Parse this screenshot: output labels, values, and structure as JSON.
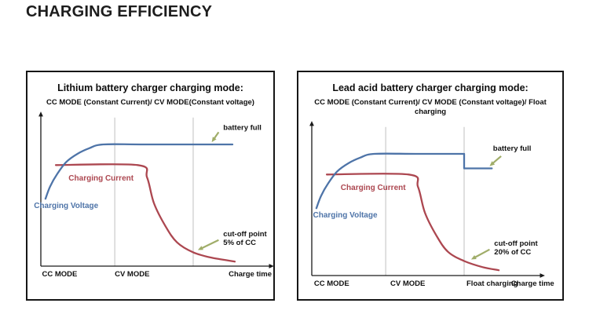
{
  "page": {
    "title": "CHARGING EFFICIENCY"
  },
  "style": {
    "axis_color": "#1a1a1a",
    "grid_color": "#b9b9b9",
    "arrow_color": "#a0ad69",
    "voltage_color": "#4e74a8",
    "current_color": "#ac4750",
    "text_color": "#111111"
  },
  "chart_data": [
    {
      "type": "line",
      "title": "Lithium battery charger charging mode:",
      "subtitle": "CC MODE (Constant Current)/ CV MODE(Constant voltage)",
      "xlabel": "Charge time",
      "ylabel": "",
      "xlim": [
        0,
        100
      ],
      "ylim": [
        0,
        100
      ],
      "axis_note": "qualitative axes, values normalized 0-100; vertical gridlines mark charging phase boundaries",
      "legend_position": "inline-curve-labels",
      "gridlines_x": [
        32,
        66
      ],
      "x_axis_labels": [
        {
          "text": "CC MODE",
          "x": 0.5,
          "anchor": "start"
        },
        {
          "text": "CV MODE",
          "x": 32,
          "anchor": "start"
        },
        {
          "text": "Charge time",
          "x": 100,
          "anchor": "end"
        }
      ],
      "series": [
        {
          "name": "Charging Current",
          "color_key": "current_color",
          "label_pos": {
            "x": 12,
            "y": 56
          },
          "segments": [
            {
              "smooth": true,
              "points": [
                [
                  6.5,
                  66
                ],
                [
                  42,
                  66
                ],
                [
                  46,
                  58
                ],
                [
                  49,
                  41
                ],
                [
                  54,
                  26
                ],
                [
                  59,
                  15.5
                ],
                [
                  66,
                  9
                ],
                [
                  74,
                  5.5
                ],
                [
                  84,
                  3
                ]
              ]
            }
          ]
        },
        {
          "name": "Charging Voltage",
          "color_key": "voltage_color",
          "label_pos": {
            "x": -3,
            "y": 38
          },
          "segments": [
            {
              "smooth": true,
              "points": [
                [
                  2,
                  44
                ],
                [
                  4,
                  52
                ],
                [
                  7,
                  60
                ],
                [
                  11,
                  68
                ],
                [
                  16,
                  73.5
                ],
                [
                  21,
                  77
                ],
                [
                  27,
                  79.5
                ],
                [
                  45,
                  79.5
                ],
                [
                  83,
                  79.5
                ]
              ]
            }
          ]
        }
      ],
      "annotations": [
        {
          "id": "battery-full",
          "lines": [
            "battery full"
          ],
          "x": 79,
          "y": 89,
          "arrow": {
            "from": [
              77,
              87.5
            ],
            "to": [
              74,
              81
            ]
          }
        },
        {
          "id": "cut-off-point",
          "lines": [
            "cut-off point",
            "5% of CC"
          ],
          "x": 79,
          "y": 19.5,
          "arrow": {
            "from": [
              77,
              17
            ],
            "to": [
              68,
              10.5
            ]
          }
        }
      ]
    },
    {
      "type": "line",
      "title": "Lead acid battery charger charging mode:",
      "subtitle": "CC MODE (Constant Current)/ CV MODE (Constant voltage)/ Float charging",
      "xlabel": "Charge time",
      "ylabel": "",
      "xlim": [
        0,
        100
      ],
      "ylim": [
        0,
        100
      ],
      "axis_note": "qualitative axes, values normalized 0-100; voltage steps down to float level at second gridline",
      "legend_position": "inline-curve-labels",
      "gridlines_x": [
        32,
        66
      ],
      "x_axis_labels": [
        {
          "text": "CC MODE",
          "x": 1,
          "anchor": "start"
        },
        {
          "text": "CV MODE",
          "x": 34,
          "anchor": "start"
        },
        {
          "text": "Float charging",
          "x": 67,
          "anchor": "start"
        },
        {
          "text": "Charge time",
          "x": 105,
          "anchor": "end"
        }
      ],
      "series": [
        {
          "name": "Charging Current",
          "color_key": "current_color",
          "label_pos": {
            "x": 12.5,
            "y": 56
          },
          "segments": [
            {
              "smooth": true,
              "points": [
                [
                  6.5,
                  66
                ],
                [
                  42,
                  66
                ],
                [
                  46,
                  58
                ],
                [
                  49,
                  41
                ],
                [
                  54,
                  26
                ],
                [
                  59,
                  15.5
                ],
                [
                  66,
                  9.5
                ],
                [
                  74,
                  5.5
                ],
                [
                  81,
                  3.5
                ]
              ]
            }
          ]
        },
        {
          "name": "Charging Voltage",
          "color_key": "voltage_color",
          "label_pos": {
            "x": 0.5,
            "y": 38
          },
          "segments": [
            {
              "smooth": true,
              "points": [
                [
                  2,
                  44
                ],
                [
                  4,
                  52
                ],
                [
                  7,
                  60
                ],
                [
                  11,
                  68
                ],
                [
                  16,
                  73.5
                ],
                [
                  21,
                  77
                ],
                [
                  27,
                  79.5
                ],
                [
                  45,
                  79.5
                ],
                [
                  66,
                  79.5
                ]
              ]
            },
            {
              "smooth": false,
              "points": [
                [
                  66,
                  79.5
                ],
                [
                  66,
                  70
                ],
                [
                  78,
                  70
                ]
              ]
            }
          ]
        }
      ],
      "annotations": [
        {
          "id": "battery-full",
          "lines": [
            "battery full"
          ],
          "x": 78.5,
          "y": 81.5,
          "arrow": {
            "from": [
              82,
              78
            ],
            "to": [
              77,
              71.5
            ]
          }
        },
        {
          "id": "cut-off-point",
          "lines": [
            "cut-off point",
            "20% of CC"
          ],
          "x": 79,
          "y": 19.5,
          "arrow": {
            "from": [
              77,
              17
            ],
            "to": [
              69,
              10.5
            ]
          }
        }
      ]
    }
  ]
}
